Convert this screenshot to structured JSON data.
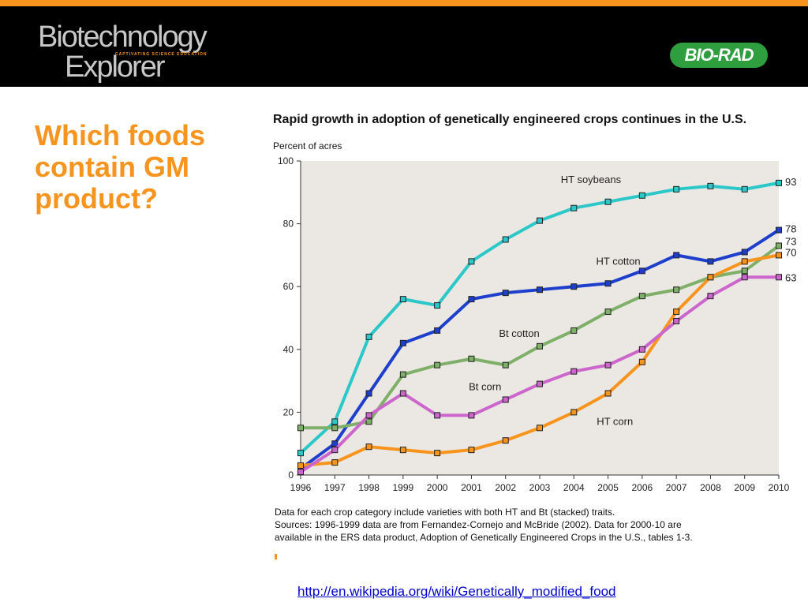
{
  "header": {
    "logo_line1": "Biotechnology",
    "logo_line2": "Explorer",
    "logo_tagline": "CAPTIVATING SCIENCE EDUCATION",
    "brand_logo": "BIO-RAD",
    "colors": {
      "accent": "#f7941d",
      "brand_green": "#2e9e3e",
      "header_bg": "#000000"
    }
  },
  "slide": {
    "title": "Which foods contain GM product?",
    "link": "http://en.wikipedia.org/wiki/Genetically_modified_food"
  },
  "chart_data": {
    "type": "line",
    "title": "Rapid growth in adoption of genetically engineered crops continues in the U.S.",
    "ylabel": "Percent of acres",
    "xlabel": "",
    "x": [
      "1996",
      "1997",
      "1998",
      "1999",
      "2000",
      "2001",
      "2002",
      "2003",
      "2004",
      "2005",
      "2006",
      "2007",
      "2008",
      "2009",
      "2010"
    ],
    "ylim": [
      0,
      100
    ],
    "yticks": [
      0,
      20,
      40,
      60,
      80,
      100
    ],
    "grid": false,
    "background": "#ebe8e3",
    "series": [
      {
        "name": "HT soybeans",
        "color": "#2cc7c9",
        "values": [
          7,
          17,
          44,
          56,
          54,
          68,
          75,
          81,
          85,
          87,
          89,
          91,
          92,
          91,
          93
        ],
        "end_label": "93"
      },
      {
        "name": "HT cotton",
        "color": "#1d3fcc",
        "values": [
          2,
          10,
          26,
          42,
          46,
          56,
          58,
          59,
          60,
          61,
          65,
          70,
          68,
          71,
          78
        ],
        "end_label": "78"
      },
      {
        "name": "Bt cotton",
        "color": "#7fb069",
        "values": [
          15,
          15,
          17,
          32,
          35,
          37,
          35,
          41,
          46,
          52,
          57,
          59,
          63,
          65,
          73
        ],
        "end_label": "73"
      },
      {
        "name": "HT corn",
        "color": "#f7941d",
        "values": [
          3,
          4,
          9,
          8,
          7,
          8,
          11,
          15,
          20,
          26,
          36,
          52,
          63,
          68,
          70
        ],
        "end_label": "70"
      },
      {
        "name": "Bt corn",
        "color": "#cc66cc",
        "values": [
          1,
          8,
          19,
          26,
          19,
          19,
          24,
          29,
          33,
          35,
          40,
          49,
          57,
          63,
          63
        ],
        "end_label": "63"
      }
    ],
    "notes": [
      "Data for each crop category include varieties with both HT and Bt (stacked) traits.",
      "Sources: 1996-1999 data are from Fernandez-Cornejo and McBride (2002). Data for 2000-10 are",
      "available in the ERS data product, Adoption of Genetically Engineered Crops in the U.S., tables 1-3."
    ]
  }
}
